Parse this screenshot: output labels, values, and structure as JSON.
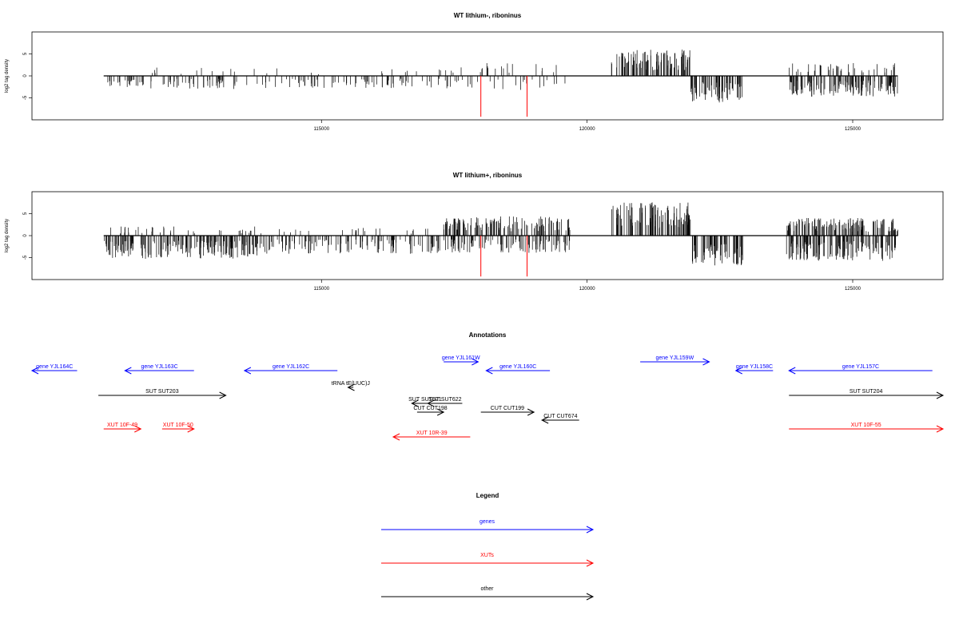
{
  "tracks": [
    {
      "title": "WT lithium-, riboninus",
      "ylabel": "log2 tag density",
      "ylim": [
        -10,
        10
      ],
      "yticks": [
        -5,
        0,
        5
      ],
      "xticks": [
        115000,
        120000,
        125000
      ],
      "xlim": [
        109550,
        126700
      ],
      "events": [
        {
          "start": 110900,
          "end": 111600,
          "value": -2.2,
          "density": 0.45
        },
        {
          "start": 111600,
          "end": 113800,
          "value": -2.6,
          "density": 0.35
        },
        {
          "start": 111600,
          "end": 113800,
          "value": 1.8,
          "density": 0.08
        },
        {
          "start": 113800,
          "end": 117300,
          "value": -2.4,
          "density": 0.3
        },
        {
          "start": 113800,
          "end": 117300,
          "value": 1.5,
          "density": 0.05
        },
        {
          "start": 117300,
          "end": 119600,
          "value": -2.8,
          "density": 0.18
        },
        {
          "start": 117300,
          "end": 119600,
          "value": 2.6,
          "density": 0.14
        },
        {
          "start": 120450,
          "end": 121950,
          "value": 5.2,
          "density": 1.0
        },
        {
          "start": 121950,
          "end": 122950,
          "value": -5.4,
          "density": 1.0
        },
        {
          "start": 123800,
          "end": 125850,
          "value": -4.2,
          "density": 1.0
        },
        {
          "start": 123800,
          "end": 125850,
          "value": 2.6,
          "density": 0.3
        }
      ],
      "red_lines": [
        {
          "x": 118000,
          "value": -9.3
        },
        {
          "x": 118870,
          "value": -9.3
        }
      ]
    },
    {
      "title": "WT lithium+, riboninus",
      "ylabel": "log2 tag density",
      "ylim": [
        -10,
        10
      ],
      "yticks": [
        -5,
        0,
        5
      ],
      "xticks": [
        115000,
        120000,
        125000
      ],
      "xlim": [
        109550,
        126700
      ],
      "events": [
        {
          "start": 110900,
          "end": 113800,
          "value": -4.6,
          "density": 1.0
        },
        {
          "start": 110900,
          "end": 113800,
          "value": 2.0,
          "density": 0.18
        },
        {
          "start": 113800,
          "end": 117300,
          "value": -3.6,
          "density": 0.5
        },
        {
          "start": 113800,
          "end": 117300,
          "value": 1.6,
          "density": 0.1
        },
        {
          "start": 117300,
          "end": 119700,
          "value": 3.8,
          "density": 0.8
        },
        {
          "start": 117300,
          "end": 119700,
          "value": -3.4,
          "density": 0.6
        },
        {
          "start": 120450,
          "end": 121950,
          "value": 6.6,
          "density": 1.0
        },
        {
          "start": 121950,
          "end": 122950,
          "value": -6.0,
          "density": 1.0
        },
        {
          "start": 123750,
          "end": 125850,
          "value": 3.5,
          "density": 1.0
        },
        {
          "start": 123750,
          "end": 125850,
          "value": -5.0,
          "density": 1.0
        }
      ],
      "red_lines": [
        {
          "x": 118000,
          "value": -9.3
        },
        {
          "x": 118870,
          "value": -9.3
        }
      ]
    }
  ],
  "annotations": {
    "title": "Annotations",
    "items": [
      {
        "label": "gene YJL164C",
        "start": 109550,
        "end": 110400,
        "dir": -1,
        "row": 0,
        "color": "#0000ff"
      },
      {
        "label": "gene YJL163C",
        "start": 111300,
        "end": 112600,
        "dir": -1,
        "row": 0,
        "color": "#0000ff"
      },
      {
        "label": "gene YJL162C",
        "start": 113550,
        "end": 115300,
        "dir": -1,
        "row": 0,
        "color": "#0000ff"
      },
      {
        "label": "gene YJL161W",
        "start": 117300,
        "end": 117950,
        "dir": 1,
        "row": -1,
        "color": "#0000ff"
      },
      {
        "label": "gene YJL160C",
        "start": 118100,
        "end": 119300,
        "dir": -1,
        "row": 0,
        "color": "#0000ff"
      },
      {
        "label": "gene YJL159W",
        "start": 121000,
        "end": 122300,
        "dir": 1,
        "row": -1,
        "color": "#0000ff"
      },
      {
        "label": "gene YJL158C",
        "start": 122800,
        "end": 123500,
        "dir": -1,
        "row": 0,
        "color": "#0000ff"
      },
      {
        "label": "gene YJL157C",
        "start": 123800,
        "end": 126500,
        "dir": -1,
        "row": 0,
        "color": "#0000ff"
      },
      {
        "label": "tRNA tE(UUC)J",
        "start": 115500,
        "end": 115600,
        "dir": -1,
        "row": 1,
        "color": "#000000"
      },
      {
        "label": "SUT SUT203",
        "start": 110800,
        "end": 113200,
        "dir": 1,
        "row": 2,
        "color": "#000000"
      },
      {
        "label": "SUT SUT204",
        "start": 123800,
        "end": 126700,
        "dir": 1,
        "row": 2,
        "color": "#000000"
      },
      {
        "label": "SUT SUT621",
        "start": 116700,
        "end": 117200,
        "dir": -1,
        "row": 3,
        "color": "#000000"
      },
      {
        "label": "SUT SUT622",
        "start": 117000,
        "end": 117650,
        "dir": -1,
        "row": 3,
        "color": "#000000"
      },
      {
        "label": "CUT CUT198",
        "start": 116800,
        "end": 117300,
        "dir": 1,
        "row": 4,
        "color": "#000000"
      },
      {
        "label": "CUT CUT199",
        "start": 118000,
        "end": 119000,
        "dir": 1,
        "row": 4,
        "color": "#000000"
      },
      {
        "label": "CUT CUT674",
        "start": 119150,
        "end": 119850,
        "dir": -1,
        "row": 5,
        "color": "#000000"
      },
      {
        "label": "XUT 10F-49",
        "start": 110900,
        "end": 111600,
        "dir": 1,
        "row": 6,
        "color": "#ff0000"
      },
      {
        "label": "XUT 10F-50",
        "start": 112000,
        "end": 112600,
        "dir": 1,
        "row": 6,
        "color": "#ff0000"
      },
      {
        "label": "XUT 10R-39",
        "start": 116350,
        "end": 117800,
        "dir": -1,
        "row": 7,
        "color": "#ff0000"
      },
      {
        "label": "XUT 10F-55",
        "start": 123800,
        "end": 126700,
        "dir": 1,
        "row": 6,
        "color": "#ff0000"
      }
    ]
  },
  "legend": {
    "title": "Legend",
    "items": [
      {
        "label": "genes",
        "color": "#0000ff"
      },
      {
        "label": "XUTs",
        "color": "#ff0000"
      },
      {
        "label": "other",
        "color": "#000000"
      }
    ]
  }
}
